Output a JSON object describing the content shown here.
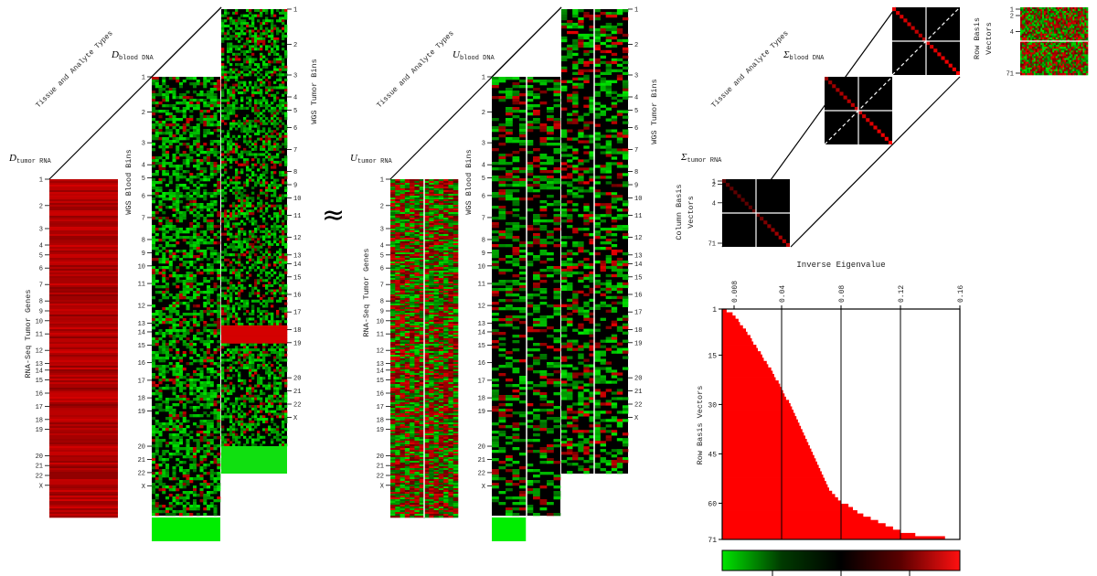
{
  "panels": {
    "d_tumor_rna": {
      "symbol": "D",
      "sub": "tumor RNA",
      "ylabel": "RNA-Seq Tumor Genes",
      "ticks": [
        "1",
        "2",
        "3",
        "4",
        "5",
        "6",
        "7",
        "8",
        "9",
        "10",
        "11",
        "12",
        "13",
        "14",
        "15",
        "16",
        "17",
        "18",
        "19",
        "20",
        "21",
        "22",
        "X"
      ]
    },
    "d_blood_dna": {
      "symbol": "D",
      "sub": "blood DNA",
      "ylabel": "WGS Blood Bins",
      "ticks": [
        "1",
        "2",
        "3",
        "4",
        "5",
        "6",
        "7",
        "8",
        "9",
        "10",
        "11",
        "12",
        "13",
        "14",
        "15",
        "16",
        "17",
        "18",
        "19",
        "20",
        "21",
        "22",
        "X"
      ]
    },
    "d_tumor_dna": {
      "ylabel": "WGS Tumor Bins",
      "ticks": [
        "1",
        "2",
        "3",
        "4",
        "5",
        "6",
        "7",
        "8",
        "9",
        "10",
        "11",
        "12",
        "13",
        "14",
        "15",
        "16",
        "17",
        "18",
        "19",
        "20",
        "21",
        "22",
        "X"
      ]
    },
    "tissue_label": "Tissue and Analyte Types",
    "approx_symbol": "≈",
    "u_tumor_rna": {
      "symbol": "U",
      "sub": "tumor RNA",
      "ylabel": "RNA-Seq Tumor Genes"
    },
    "u_blood_dna": {
      "symbol": "U",
      "sub": "blood DNA",
      "ylabel": "WGS Blood Bins"
    },
    "u_tumor_dna": {
      "ylabel": "WGS Tumor Bins"
    },
    "sigma_tumor_rna": {
      "symbol": "Σ",
      "sub": "tumor RNA",
      "ylabel_line1": "Column Basis",
      "ylabel_line2": "Vectors",
      "ticks": [
        "1",
        "2",
        "4",
        "71"
      ]
    },
    "sigma_blood_dna": {
      "symbol": "Σ",
      "sub": "blood DNA"
    },
    "row_basis": {
      "ylabel_line1": "Row Basis",
      "ylabel_line2": "Vectors",
      "ticks": [
        "1",
        "2",
        "4",
        "71"
      ]
    }
  },
  "chart_data": {
    "type": "area",
    "title": "Inverse Eigenvalue",
    "ylabel": "Row Basis Vectors",
    "x_ticks": [
      "0.008",
      "0.04",
      "0.08",
      "0.12",
      "0.16"
    ],
    "y_ticks": [
      "1",
      "15",
      "30",
      "45",
      "60",
      "71"
    ],
    "xlim": [
      0,
      0.16
    ],
    "ylim": [
      1,
      71
    ],
    "gridlines_x": [
      0.04,
      0.08,
      0.12
    ],
    "series": [
      {
        "color": "#ff0000",
        "y": [
          1,
          2,
          3,
          4,
          5,
          6,
          7,
          8,
          9,
          10,
          11,
          12,
          13,
          14,
          15,
          16,
          17,
          18,
          19,
          20,
          21,
          22,
          23,
          24,
          25,
          26,
          27,
          28,
          29,
          30,
          31,
          32,
          33,
          34,
          35,
          36,
          37,
          38,
          39,
          40,
          41,
          42,
          43,
          44,
          45,
          46,
          47,
          48,
          49,
          50,
          51,
          52,
          53,
          54,
          55,
          56,
          57,
          58,
          59,
          60,
          61,
          62,
          63,
          64,
          65,
          66,
          67,
          68,
          69,
          70,
          71
        ],
        "x": [
          0.003,
          0.007,
          0.009,
          0.011,
          0.012,
          0.014,
          0.016,
          0.017,
          0.019,
          0.02,
          0.021,
          0.023,
          0.024,
          0.026,
          0.027,
          0.028,
          0.03,
          0.031,
          0.033,
          0.034,
          0.035,
          0.036,
          0.038,
          0.039,
          0.04,
          0.041,
          0.042,
          0.043,
          0.045,
          0.046,
          0.047,
          0.048,
          0.049,
          0.05,
          0.051,
          0.052,
          0.053,
          0.054,
          0.055,
          0.056,
          0.057,
          0.058,
          0.059,
          0.06,
          0.061,
          0.062,
          0.063,
          0.064,
          0.065,
          0.066,
          0.067,
          0.068,
          0.069,
          0.07,
          0.071,
          0.072,
          0.074,
          0.076,
          0.078,
          0.08,
          0.085,
          0.088,
          0.091,
          0.095,
          0.1,
          0.105,
          0.11,
          0.115,
          0.12,
          0.13,
          0.15
        ]
      }
    ]
  },
  "colorbar": {
    "colors": [
      "#00e400",
      "#003a00",
      "#000000",
      "#5a0000",
      "#ff1010"
    ]
  }
}
